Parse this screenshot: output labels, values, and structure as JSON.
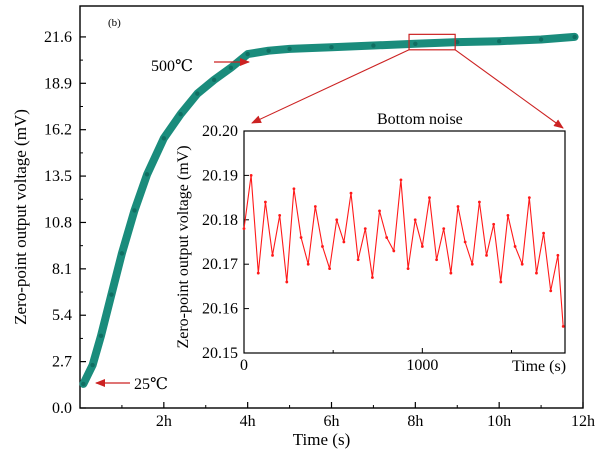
{
  "chart_data": [
    {
      "type": "line",
      "panel_label": "(b)",
      "title": "",
      "xlabel": "Time (s)",
      "ylabel": "Zero-point output voltage (mV)",
      "xlim": [
        0,
        12
      ],
      "ylim": [
        0,
        23.4
      ],
      "x_ticks": [
        {
          "value": 2,
          "label": "2h"
        },
        {
          "value": 4,
          "label": "4h"
        },
        {
          "value": 6,
          "label": "6h"
        },
        {
          "value": 8,
          "label": "8h"
        },
        {
          "value": 10,
          "label": "10h"
        },
        {
          "value": 12,
          "label": "12h"
        }
      ],
      "y_ticks": [
        {
          "value": 0,
          "label": "0.0"
        },
        {
          "value": 2.7,
          "label": "2.7"
        },
        {
          "value": 5.4,
          "label": "5.4"
        },
        {
          "value": 8.1,
          "label": "8.1"
        },
        {
          "value": 10.8,
          "label": "10.8"
        },
        {
          "value": 13.5,
          "label": "13.5"
        },
        {
          "value": 16.2,
          "label": "16.2"
        },
        {
          "value": 18.9,
          "label": "18.9"
        },
        {
          "value": 21.6,
          "label": "21.6"
        }
      ],
      "series": [
        {
          "color": "#1a8c7c",
          "x": [
            0.08,
            0.3,
            0.5,
            0.75,
            1.0,
            1.3,
            1.6,
            2.0,
            2.4,
            2.8,
            3.2,
            3.6,
            4.0,
            4.5,
            5.0,
            6.0,
            7.0,
            8.0,
            9.0,
            10.0,
            11.0,
            11.8
          ],
          "y": [
            1.4,
            2.5,
            4.2,
            6.6,
            9.0,
            11.5,
            13.6,
            15.7,
            17.1,
            18.3,
            19.1,
            19.8,
            20.6,
            20.8,
            20.9,
            21.0,
            21.1,
            21.2,
            21.3,
            21.35,
            21.45,
            21.6
          ]
        }
      ],
      "annotations": {
        "high_temp": "500℃",
        "low_temp": "25℃",
        "zoom_label": "Bottom noise"
      },
      "grid": false
    },
    {
      "type": "line",
      "title": "",
      "xlabel": "Time (s)",
      "ylabel": "Zero-point output voltage (mV)",
      "xlim": [
        0,
        1800
      ],
      "ylim": [
        20.15,
        20.2
      ],
      "x_ticks": [
        {
          "value": 0,
          "label": "0"
        },
        {
          "value": 1000,
          "label": "1000"
        }
      ],
      "y_ticks": [
        {
          "value": 20.15,
          "label": "20.15"
        },
        {
          "value": 20.16,
          "label": "20.16"
        },
        {
          "value": 20.17,
          "label": "20.17"
        },
        {
          "value": 20.18,
          "label": "20.18"
        },
        {
          "value": 20.19,
          "label": "20.19"
        },
        {
          "value": 20.2,
          "label": "20.20"
        }
      ],
      "series": [
        {
          "color": "#ff1a1a",
          "x": [
            0,
            40,
            80,
            120,
            160,
            200,
            240,
            280,
            320,
            360,
            400,
            440,
            480,
            520,
            560,
            600,
            640,
            680,
            720,
            760,
            800,
            840,
            880,
            920,
            960,
            1000,
            1040,
            1080,
            1120,
            1160,
            1200,
            1240,
            1280,
            1320,
            1360,
            1400,
            1440,
            1480,
            1520,
            1560,
            1600,
            1640,
            1680,
            1720,
            1760,
            1790
          ],
          "y": [
            20.178,
            20.19,
            20.168,
            20.184,
            20.172,
            20.181,
            20.166,
            20.187,
            20.176,
            20.17,
            20.183,
            20.174,
            20.169,
            20.18,
            20.175,
            20.186,
            20.171,
            20.178,
            20.167,
            20.182,
            20.176,
            20.173,
            20.189,
            20.169,
            20.18,
            20.174,
            20.185,
            20.171,
            20.178,
            20.168,
            20.183,
            20.175,
            20.17,
            20.184,
            20.172,
            20.179,
            20.166,
            20.181,
            20.174,
            20.17,
            20.185,
            20.168,
            20.177,
            20.164,
            20.172,
            20.156
          ]
        }
      ],
      "grid": false
    }
  ]
}
